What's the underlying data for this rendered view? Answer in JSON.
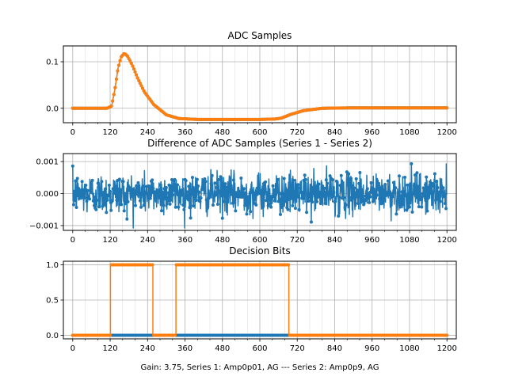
{
  "colors": {
    "series1": "#1f77b4",
    "series2": "#ff7f0e",
    "grid": "#b0b0b0"
  },
  "figure_xlabel": "Gain: 3.75, Series 1: Amp0p01, AG --- Series 2: Amp0p9, AG",
  "chart_data": [
    {
      "type": "line",
      "title": "ADC Samples",
      "xlim": [
        -30,
        1230
      ],
      "ylim": [
        -0.031,
        0.134
      ],
      "xticks": [
        0,
        120,
        240,
        360,
        480,
        600,
        720,
        840,
        960,
        1080,
        1200
      ],
      "xtick_labels": [
        "0",
        "120",
        "240",
        "360",
        "480",
        "600",
        "720",
        "840",
        "960",
        "1080",
        "1200"
      ],
      "yticks": [
        0.0,
        0.1
      ],
      "ytick_labels": [
        "0.0",
        "0.1"
      ],
      "grid": true,
      "markers": true,
      "series": [
        {
          "points": [
            [
              0,
              0
            ],
            [
              110,
              0
            ],
            [
              125,
              0.005
            ],
            [
              135,
              0.04
            ],
            [
              145,
              0.085
            ],
            [
              155,
              0.11
            ],
            [
              165,
              0.118
            ],
            [
              175,
              0.113
            ],
            [
              190,
              0.094
            ],
            [
              210,
              0.062
            ],
            [
              230,
              0.035
            ],
            [
              260,
              0.008
            ],
            [
              300,
              -0.014
            ],
            [
              340,
              -0.022
            ],
            [
              400,
              -0.024
            ],
            [
              500,
              -0.024
            ],
            [
              600,
              -0.024
            ],
            [
              650,
              -0.023
            ],
            [
              670,
              -0.021
            ],
            [
              700,
              -0.013
            ],
            [
              740,
              -0.005
            ],
            [
              800,
              0
            ],
            [
              900,
              0.001
            ],
            [
              1000,
              0.001
            ],
            [
              1200,
              0.001
            ]
          ]
        },
        {
          "points": [
            [
              0,
              0
            ],
            [
              110,
              0
            ],
            [
              125,
              0.005
            ],
            [
              135,
              0.04
            ],
            [
              145,
              0.085
            ],
            [
              155,
              0.11
            ],
            [
              165,
              0.118
            ],
            [
              175,
              0.113
            ],
            [
              190,
              0.094
            ],
            [
              210,
              0.062
            ],
            [
              230,
              0.035
            ],
            [
              260,
              0.008
            ],
            [
              300,
              -0.014
            ],
            [
              340,
              -0.022
            ],
            [
              400,
              -0.024
            ],
            [
              500,
              -0.024
            ],
            [
              600,
              -0.024
            ],
            [
              650,
              -0.023
            ],
            [
              670,
              -0.021
            ],
            [
              700,
              -0.013
            ],
            [
              740,
              -0.005
            ],
            [
              800,
              0
            ],
            [
              900,
              0.001
            ],
            [
              1000,
              0.001
            ],
            [
              1200,
              0.001
            ]
          ]
        }
      ]
    },
    {
      "type": "line",
      "title": "Difference of ADC Samples (Series 1 - Series 2)",
      "xlim": [
        -30,
        1230
      ],
      "ylim": [
        -0.00115,
        0.00125
      ],
      "xticks": [
        0,
        120,
        240,
        360,
        480,
        600,
        720,
        840,
        960,
        1080,
        1200
      ],
      "xtick_labels": [
        "0",
        "120",
        "240",
        "360",
        "480",
        "600",
        "720",
        "840",
        "960",
        "1080",
        "1200"
      ],
      "yticks": [
        -0.001,
        0.0,
        0.001
      ],
      "ytick_labels": [
        "−0.001",
        "0.000",
        "0.001"
      ],
      "grid": true,
      "markers": true,
      "noise": {
        "n": 1200,
        "mean": 0.0,
        "std": 0.00031,
        "min": -0.00108,
        "max": 0.00122
      },
      "series": [
        {
          "color_key": "series1"
        }
      ]
    },
    {
      "type": "line",
      "title": "Decision Bits",
      "xlim": [
        -30,
        1230
      ],
      "ylim": [
        -0.05,
        1.05
      ],
      "xticks": [
        0,
        120,
        240,
        360,
        480,
        600,
        720,
        840,
        960,
        1080,
        1200
      ],
      "xtick_labels": [
        "0",
        "120",
        "240",
        "360",
        "480",
        "600",
        "720",
        "840",
        "960",
        "1080",
        "1200"
      ],
      "yticks": [
        0.0,
        0.5,
        1.0
      ],
      "ytick_labels": [
        "0.0",
        "0.5",
        "1.0"
      ],
      "grid": true,
      "markers": true,
      "series": [
        {
          "points": [
            [
              0,
              0
            ],
            [
              1200,
              0
            ]
          ]
        },
        {
          "points": [
            [
              0,
              0
            ],
            [
              121,
              0
            ],
            [
              121,
              1
            ],
            [
              257,
              1
            ],
            [
              257,
              0
            ],
            [
              331,
              0
            ],
            [
              331,
              1
            ],
            [
              693,
              1
            ],
            [
              693,
              0
            ],
            [
              1200,
              0
            ]
          ]
        }
      ]
    }
  ]
}
